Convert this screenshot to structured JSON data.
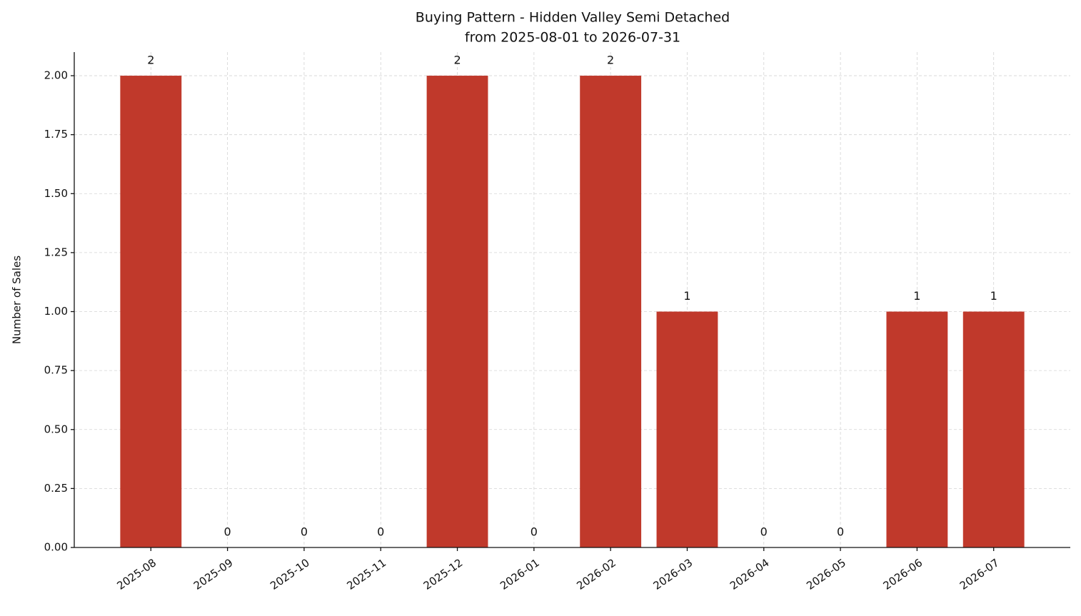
{
  "chart_data": {
    "type": "bar",
    "title": "Buying Pattern - Hidden Valley Semi Detached",
    "subtitle": "from 2025-08-01 to 2026-07-31",
    "y_label": "Number of Sales",
    "categories": [
      "2025-08",
      "2025-09",
      "2025-10",
      "2025-11",
      "2025-12",
      "2026-01",
      "2026-02",
      "2026-03",
      "2026-04",
      "2026-05",
      "2026-06",
      "2026-07"
    ],
    "values": [
      2,
      0,
      0,
      0,
      2,
      0,
      2,
      1,
      0,
      0,
      1,
      1
    ],
    "color": "#c0392b",
    "ylim": [
      0,
      2.1
    ],
    "yticks": [
      {
        "value": 0,
        "label": "0.00"
      },
      {
        "value": 0.25,
        "label": "0.25"
      },
      {
        "value": 0.5,
        "label": "0.50"
      },
      {
        "value": 0.75,
        "label": "0.75"
      },
      {
        "value": 1,
        "label": "1.00"
      },
      {
        "value": 1.25,
        "label": "1.25"
      },
      {
        "value": 1.5,
        "label": "1.50"
      },
      {
        "value": 1.75,
        "label": "1.75"
      },
      {
        "value": 2,
        "label": "2.00"
      }
    ],
    "grid": true
  }
}
